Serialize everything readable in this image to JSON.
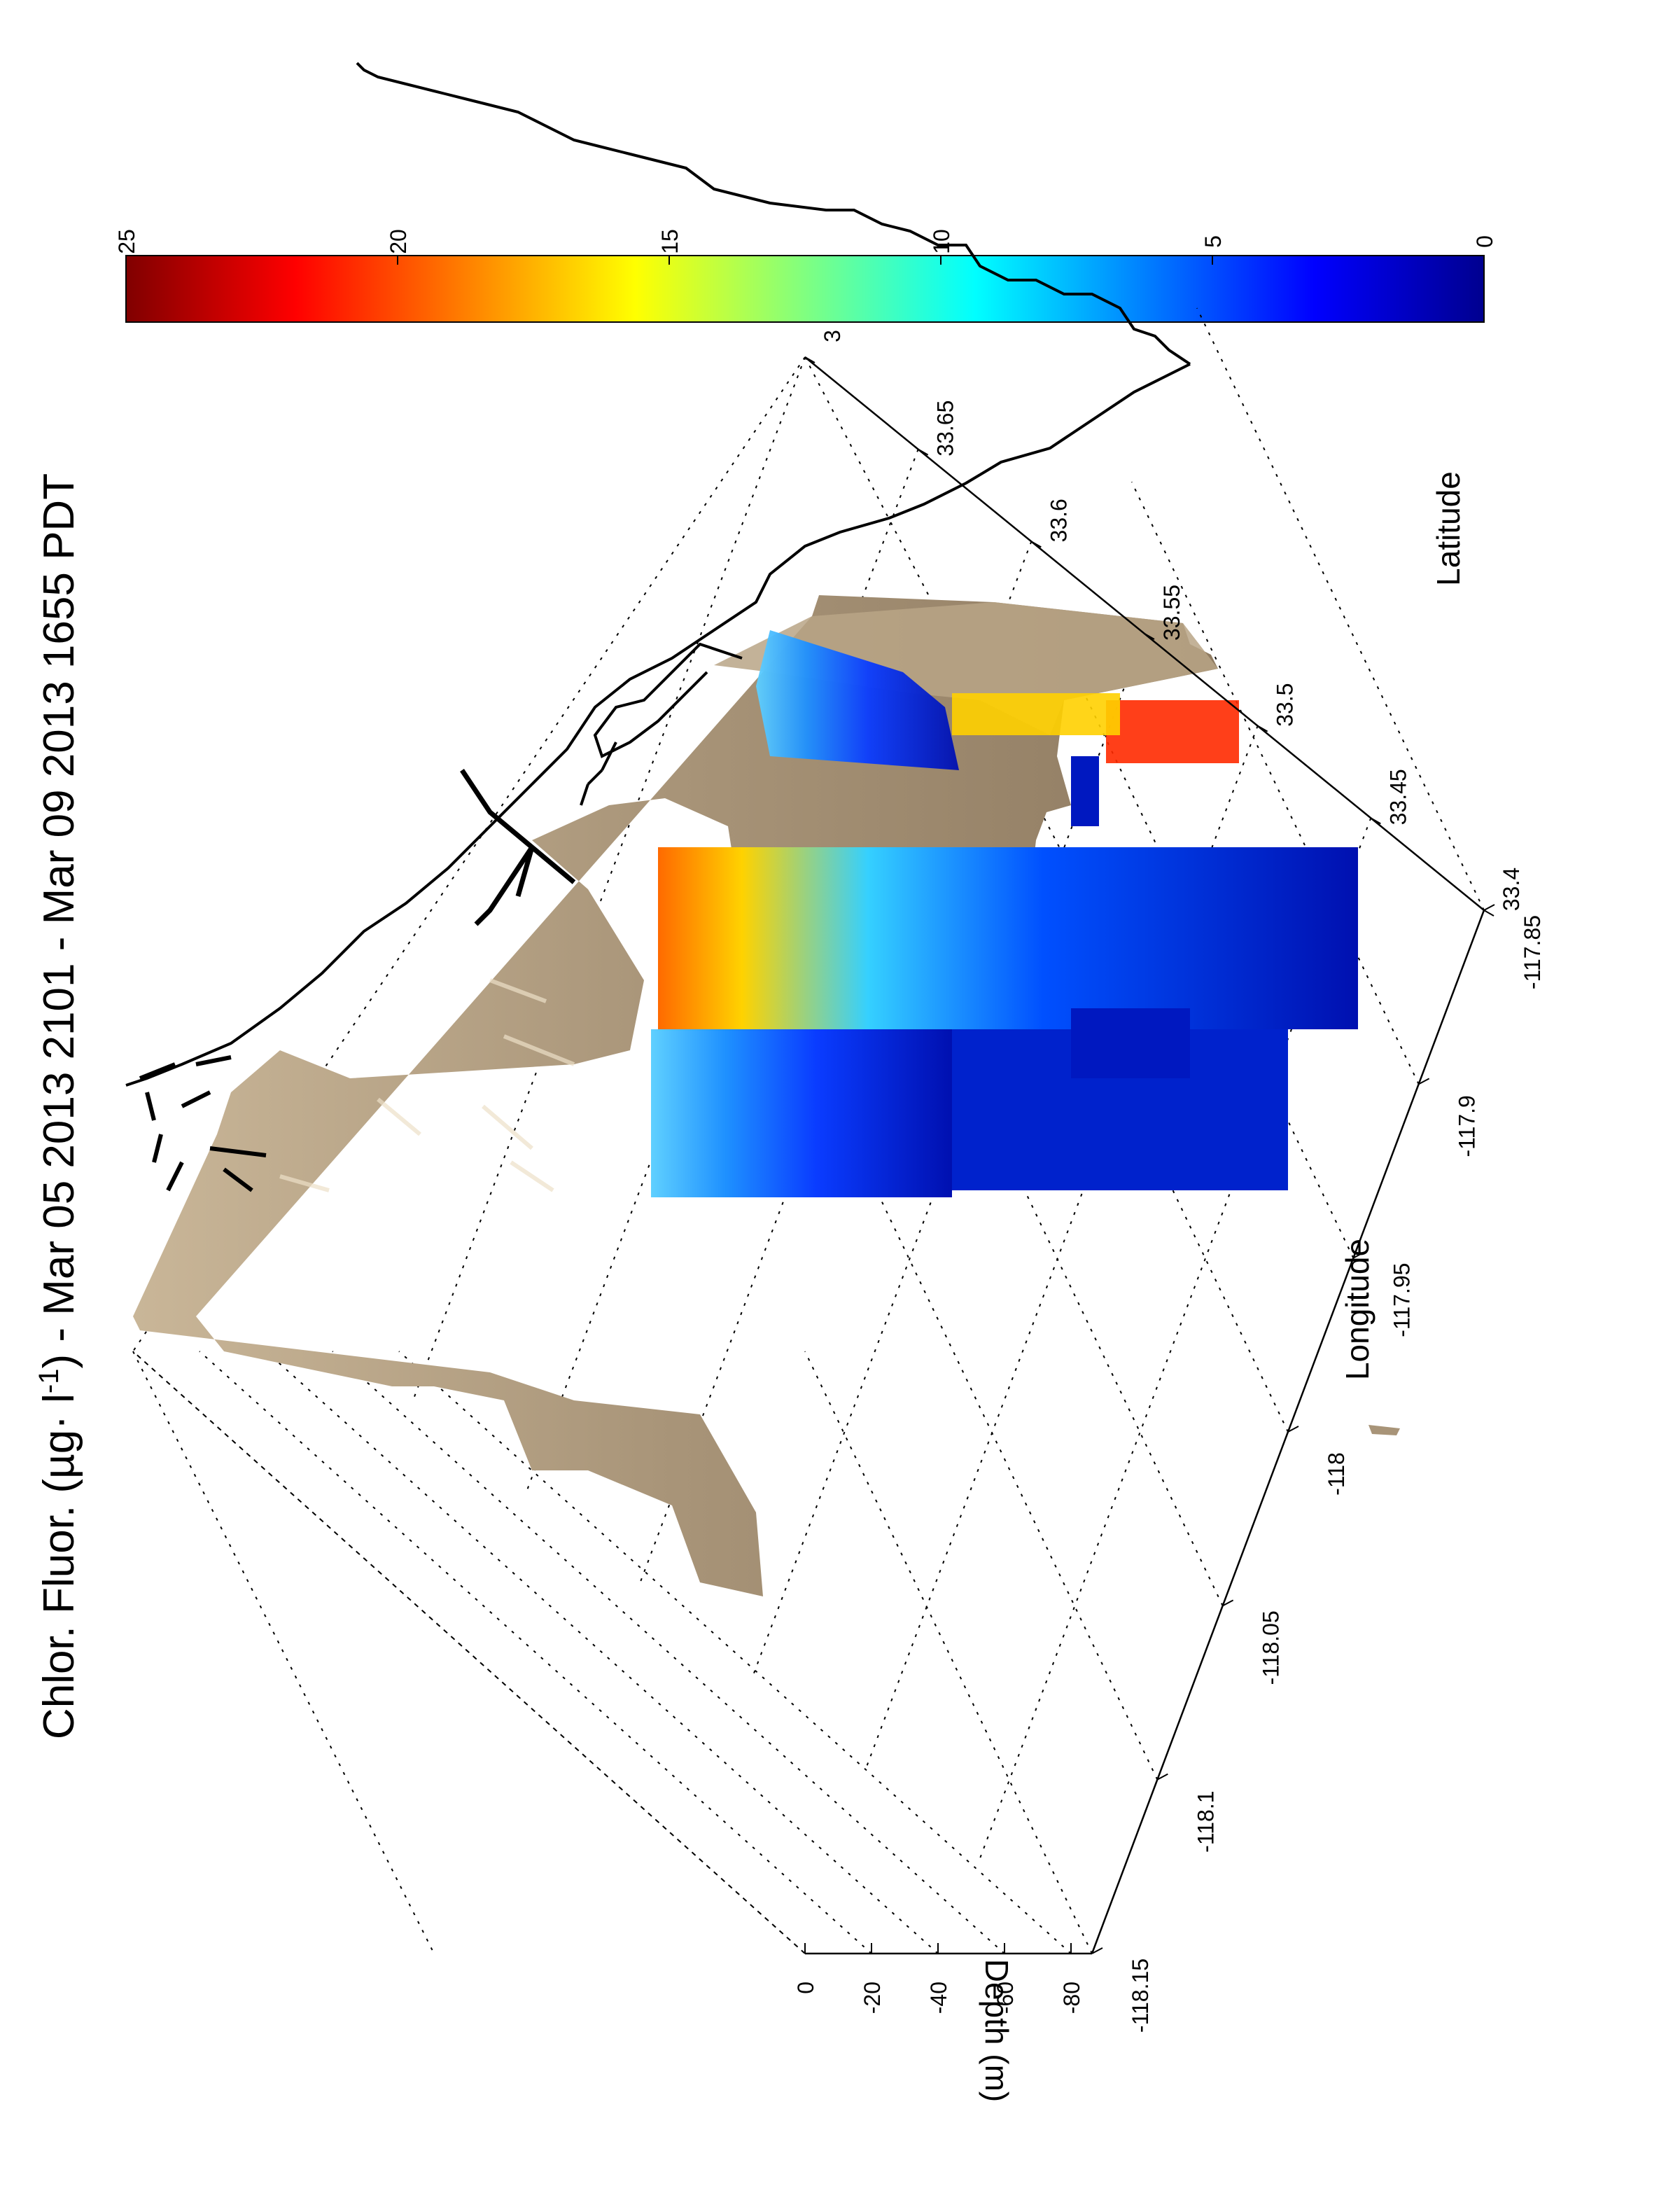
{
  "chart_data": {
    "type": "3d-surface-with-section-plots",
    "title_main": "Chlor. Fluor. (",
    "title_units_base": "µg· l",
    "title_units_sup": "-1",
    "title_after": ") - Mar 05 2013 2101 - Mar 09 2013 1655 PDT",
    "xlabel": "Longitude",
    "ylabel": "Latitude",
    "zlabel": "Depth (m)",
    "x_ticks": [
      "-118.15",
      "-118.1",
      "-118.05",
      "-118",
      "-117.95",
      "-117.9",
      "-117.85"
    ],
    "y_ticks": [
      "33.4",
      "33.45",
      "33.5",
      "33.55",
      "33.6",
      "33.65",
      "3"
    ],
    "z_ticks": [
      "0",
      "-20",
      "-40",
      "-60",
      "-80"
    ],
    "xlim": [
      -118.15,
      -117.85
    ],
    "ylim": [
      33.4,
      33.7
    ],
    "zlim": [
      -90,
      0
    ],
    "colorbar": {
      "colormap": "jet",
      "range": [
        0,
        25
      ],
      "ticks": [
        "0",
        "5",
        "10",
        "15",
        "20",
        "25"
      ]
    },
    "grid": true,
    "colors": {
      "bathymetry": "#a89478",
      "coastline": "#000000",
      "low": "#00008f",
      "high": "#800000"
    }
  }
}
